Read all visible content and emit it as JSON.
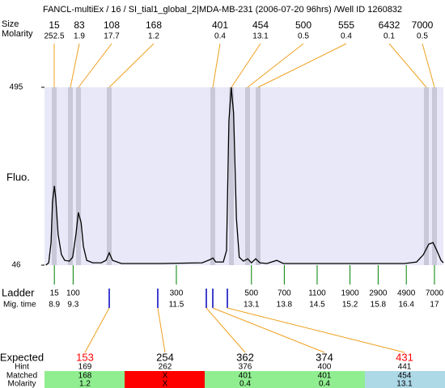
{
  "title": "FANCL-multiEx / 16 / SI_tial1_global_2|MDA-MB-231 (2006-07-20 96hrs) /Well ID 1260832",
  "peaks": {
    "size_label": "Size",
    "molarity_label": "Molarity",
    "size": [
      15,
      83,
      108,
      168,
      401,
      454,
      500,
      555,
      6432,
      7000
    ],
    "molarity": [
      252.5,
      1.9,
      17.7,
      1.2,
      0.4,
      13.1,
      0.5,
      0.4,
      0.1,
      0.5
    ],
    "band_color": "#c8c8d8",
    "line_color": "#f0a020"
  },
  "chart_data": {
    "type": "line",
    "ylabel": "Fluo.",
    "ylim": [
      46,
      495
    ],
    "yticks": [
      495,
      46
    ],
    "xlim": [
      8.69,
      17.19
    ],
    "color": "#000000",
    "background": "#e8e8f8",
    "x": [
      8.72,
      8.78,
      8.83,
      8.86,
      8.9,
      8.93,
      8.98,
      9.05,
      9.12,
      9.22,
      9.29,
      9.36,
      9.41,
      9.47,
      9.52,
      9.59,
      9.72,
      9.9,
      10.0,
      10.07,
      10.14,
      10.33,
      11.19,
      12.05,
      12.22,
      12.28,
      12.34,
      12.5,
      12.57,
      12.62,
      12.67,
      12.72,
      12.78,
      12.84,
      12.93,
      13.02,
      13.1,
      13.19,
      13.28,
      13.43,
      13.64,
      13.78,
      14.64,
      16.36,
      16.62,
      16.76,
      16.88,
      16.97,
      17.05,
      17.14,
      17.19
    ],
    "values": [
      46,
      52,
      103,
      205,
      246,
      215,
      124,
      73,
      58,
      56,
      66,
      124,
      179,
      154,
      93,
      58,
      52,
      52,
      58,
      77,
      58,
      50,
      50,
      52,
      60,
      64,
      54,
      54,
      83,
      409,
      495,
      430,
      164,
      66,
      56,
      62,
      52,
      62,
      52,
      50,
      58,
      50,
      50,
      50,
      54,
      72,
      99,
      103,
      83,
      58,
      52
    ]
  },
  "ladder": {
    "label": "Ladder",
    "time_label": "Mig. time",
    "color": "#008000",
    "sizes": [
      15,
      100,
      300,
      500,
      700,
      1100,
      1900,
      2900,
      4900,
      7000
    ],
    "times": [
      8.9,
      9.3,
      11.5,
      13.1,
      13.8,
      14.5,
      15.2,
      15.8,
      16.4,
      17
    ]
  },
  "expected": {
    "label": "Expected",
    "hint_label": "Hint",
    "matched_label": "Matched",
    "molarity_label": "Molarity",
    "marker_color": "#0000c0",
    "values": [
      153,
      254,
      362,
      374,
      431
    ],
    "colors": [
      "#ff0000",
      "#000000",
      "#000000",
      "#000000",
      "#ff0000"
    ],
    "hint": [
      169,
      262,
      376,
      400,
      441
    ],
    "matched": [
      168,
      "X",
      401,
      401,
      454
    ],
    "molarity": [
      1.2,
      "X",
      0.4,
      0.4,
      13.1
    ],
    "cell_colors": [
      "#90ee90",
      "#ff0000",
      "#90ee90",
      "#90ee90",
      "#add8e6"
    ]
  }
}
